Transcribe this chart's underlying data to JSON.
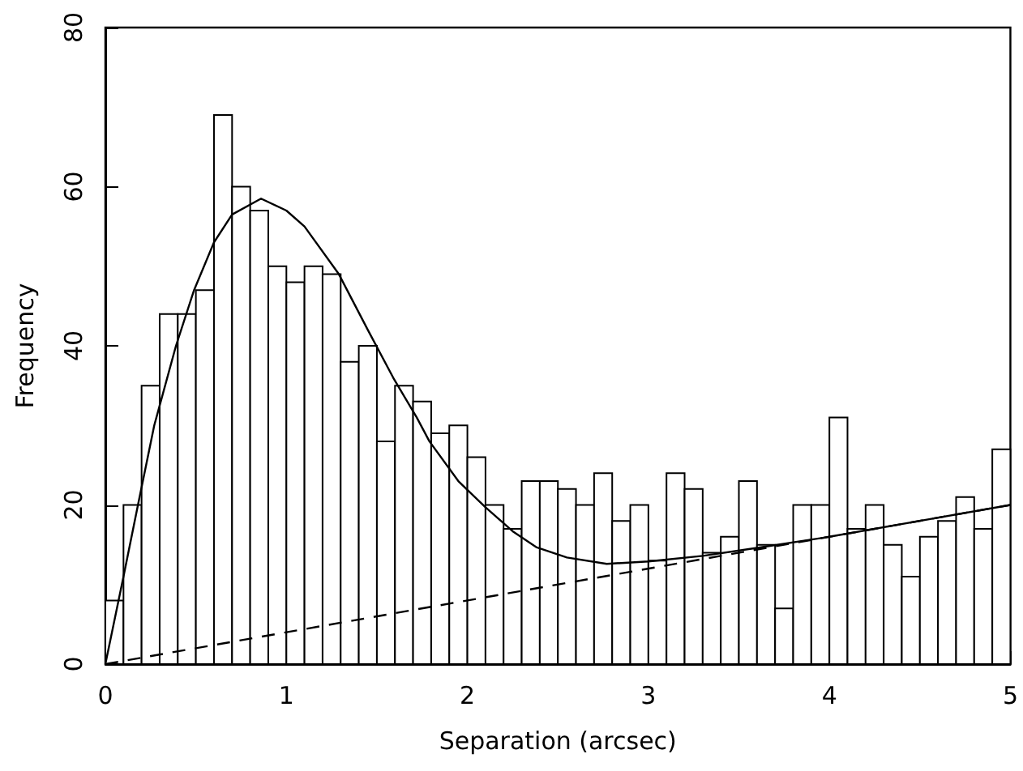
{
  "chart_data": {
    "type": "histogram",
    "xlabel": "Separation (arcsec)",
    "ylabel": "Frequency",
    "bins": [
      0,
      0.1,
      0.2,
      0.3,
      0.4,
      0.5,
      0.6,
      0.7,
      0.8,
      0.9,
      1,
      1.1,
      1.2,
      1.3,
      1.4,
      1.5,
      1.6,
      1.7,
      1.8,
      1.9,
      2,
      2.1,
      2.2,
      2.3,
      2.4,
      2.5,
      2.6,
      2.7,
      2.8,
      2.9,
      3,
      3.1,
      3.2,
      3.3,
      3.4,
      3.5,
      3.6,
      3.7,
      3.8,
      3.9,
      4,
      4.1,
      4.2,
      4.3,
      4.4,
      4.5,
      4.6,
      4.7,
      4.8,
      4.9,
      5
    ],
    "series": [
      {
        "type": "histogram",
        "color": "#ffffff",
        "values": [
          8,
          20,
          35,
          44,
          44,
          47,
          69,
          60,
          57,
          50,
          48,
          50,
          49,
          38,
          40,
          28,
          35,
          33,
          29,
          30,
          26,
          20,
          17,
          23,
          23,
          22,
          20,
          24,
          18,
          20,
          13,
          24,
          22,
          14,
          16,
          23,
          15,
          7,
          20,
          20,
          31,
          17,
          20,
          15,
          11,
          16,
          18,
          21,
          17,
          27
        ]
      },
      {
        "type": "line",
        "color": "#000000",
        "line_style": "solid",
        "x": [
          0,
          0.1,
          0.18,
          0.27,
          0.39,
          0.49,
          0.6,
          0.7,
          0.86,
          1.0,
          1.1,
          1.29,
          1.45,
          1.59,
          1.72,
          1.79,
          1.95,
          2.1,
          2.25,
          2.38,
          2.55,
          2.77,
          3.0,
          3.3,
          3.6,
          4.0,
          4.5,
          5.0
        ],
        "values": [
          0,
          11,
          20,
          30,
          40,
          47,
          53,
          56.5,
          58.5,
          57,
          55,
          49,
          42,
          36,
          31,
          28,
          23,
          19.7,
          16.7,
          14.7,
          13.4,
          12.6,
          12.9,
          13.6,
          14.6,
          16,
          18,
          20
        ]
      },
      {
        "type": "line",
        "color": "#000000",
        "line_style": "dashed",
        "x": [
          0,
          5
        ],
        "values": [
          0,
          20
        ]
      }
    ],
    "xlim": [
      0,
      5
    ],
    "xticks": [
      0,
      1,
      2,
      3,
      4,
      5
    ],
    "ylim": [
      0,
      80
    ],
    "yticks": [
      0,
      20,
      40,
      60,
      80
    ],
    "grid": false,
    "marker": "none"
  }
}
